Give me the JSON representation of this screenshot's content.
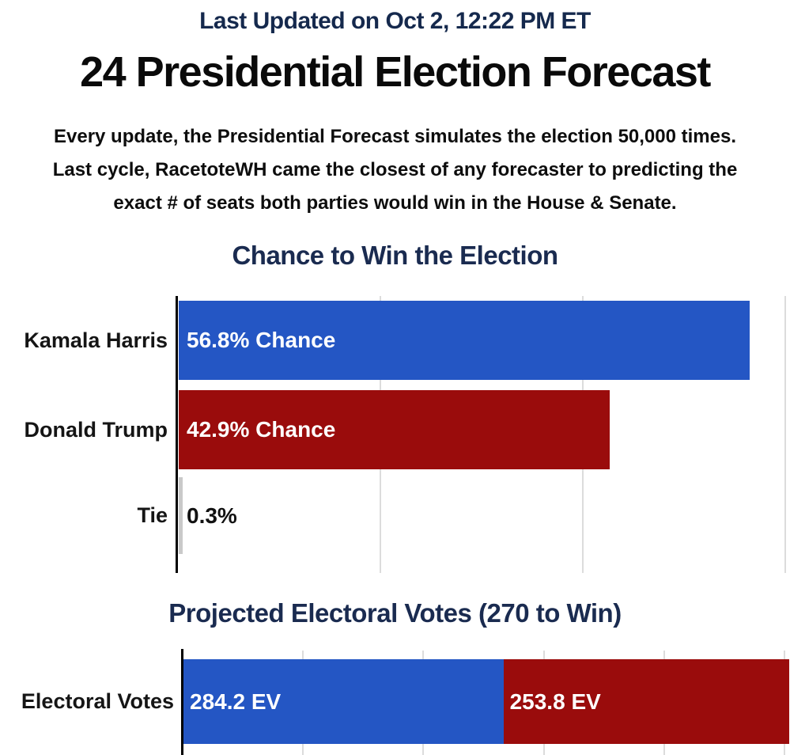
{
  "page": {
    "last_updated": "Last Updated on Oct 2, 12:22 PM ET",
    "title": "24 Presidential Election Forecast",
    "description_lines": [
      "Every update, the Presidential Forecast simulates the election 50,000 times.",
      "Last cycle, RacetoteWH came the closest of any forecaster to predicting the",
      "exact # of seats both parties would win in the House & Senate."
    ]
  },
  "colors": {
    "navy_heading": "#15294d",
    "chart_title_navy": "#1a2b50",
    "democrat_blue": "#2456c4",
    "republican_red": "#9a0c0c",
    "tie_gray": "#c9c9c9",
    "gridline_gray": "#dcdcdc",
    "axis_black": "#000000",
    "bar_label_white": "#ffffff",
    "body_text": "#0d0d0d"
  },
  "chart_data": [
    {
      "type": "bar",
      "orientation": "horizontal",
      "title": "Chance to Win the Election",
      "categories": [
        "Kamala Harris",
        "Donald Trump",
        "Tie"
      ],
      "values": [
        56.8,
        42.9,
        0.3
      ],
      "bar_labels": [
        "56.8% Chance",
        "42.9% Chance",
        "0.3%"
      ],
      "bar_colors": [
        "#2456c4",
        "#9a0c0c",
        "#c9c9c9"
      ],
      "xlim": [
        0,
        60.8
      ],
      "gridlines_pct": [
        20,
        40,
        60
      ],
      "grid": "vertical light-gray lines, black y-axis baseline",
      "legend": "none"
    },
    {
      "type": "stacked-bar",
      "orientation": "horizontal",
      "title": "Projected Electoral Votes (270 to Win)",
      "categories": [
        "Electoral Votes"
      ],
      "series": [
        {
          "name": "Kamala Harris",
          "values": [
            284.2
          ],
          "label": "284.2 EV",
          "color": "#2456c4"
        },
        {
          "name": "Donald Trump",
          "values": [
            253.8
          ],
          "label": "253.8 EV",
          "color": "#9a0c0c"
        }
      ],
      "total_electoral_votes": 538,
      "win_threshold": 270,
      "grid": "vertical light-gray ticks, black y-axis baseline",
      "legend": "none"
    }
  ]
}
